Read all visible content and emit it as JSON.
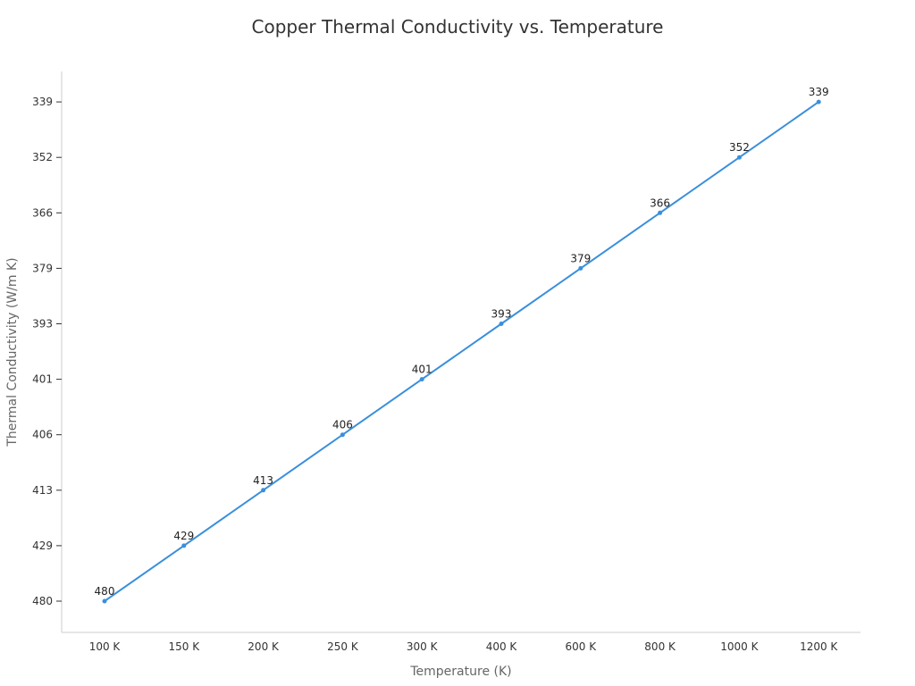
{
  "chart_data": {
    "type": "line",
    "title": "Copper Thermal Conductivity vs. Temperature",
    "xlabel": "Temperature (K)",
    "ylabel": "Thermal Conductivity (W/m K)",
    "categories": [
      "100 K",
      "150 K",
      "200 K",
      "250 K",
      "300 K",
      "400 K",
      "600 K",
      "800 K",
      "1000 K",
      "1200 K"
    ],
    "y_categories": [
      "480",
      "429",
      "413",
      "406",
      "401",
      "393",
      "379",
      "366",
      "352",
      "339"
    ],
    "series": [
      {
        "values": [
          480,
          429,
          413,
          406,
          401,
          393,
          379,
          366,
          352,
          339
        ],
        "color": "#3a8fdc"
      }
    ],
    "data_labels": [
      "480",
      "429",
      "413",
      "406",
      "401",
      "393",
      "379",
      "366",
      "352",
      "339"
    ],
    "grid": false,
    "legend": "none"
  }
}
